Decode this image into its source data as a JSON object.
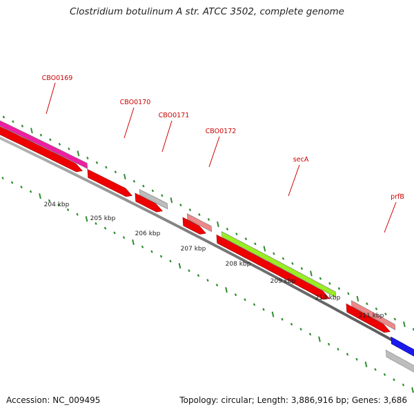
{
  "title": "Clostridium botulinum A str. ATCC 3502, complete genome",
  "footer": {
    "accession": "Accession: NC_009495",
    "stats": "Topology: circular; Length: 3,886,916 bp; Genes: 3,686"
  },
  "colors": {
    "backbone": "#8a8a8a",
    "tick": "#2e8b2e",
    "gene_label": "#cc0000",
    "scale_label": "#222222"
  },
  "scale_labels": [
    "204 kbp",
    "205 kbp",
    "206 kbp",
    "207 kbp",
    "208 kbp",
    "209 kbp",
    "210 kbp",
    "211 kbp"
  ],
  "genes": [
    {
      "label": "CBO0169",
      "color": "#ee1fa2"
    },
    {
      "label": "CBO0170",
      "color": "#bdbdbd"
    },
    {
      "label": "CBO0171",
      "color": "#bdbdbd"
    },
    {
      "label": "CBO0172",
      "color": "#ee8888"
    },
    {
      "label": "secA",
      "color": "#99ee22"
    },
    {
      "label": "prfB",
      "color": "#ee8888"
    },
    {
      "label": "",
      "color": "#1a1aee"
    },
    {
      "label": "",
      "color": "#bdbdbd"
    }
  ],
  "cds": [
    {
      "color": "#ee0000"
    },
    {
      "color": "#ee0000"
    },
    {
      "color": "#ee0000"
    },
    {
      "color": "#ee0000"
    },
    {
      "color": "#ee0000"
    },
    {
      "color": "#ee0000"
    }
  ]
}
